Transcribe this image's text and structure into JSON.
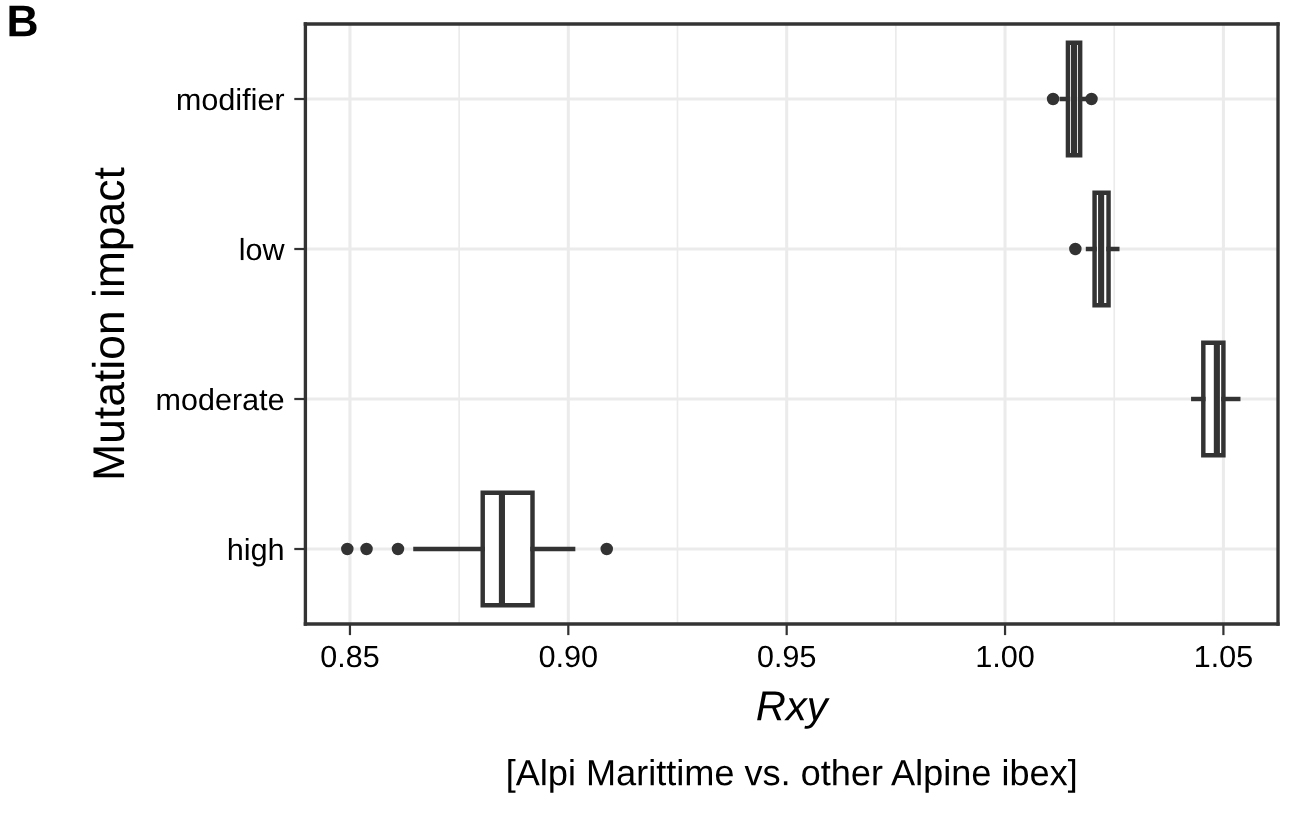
{
  "chart_data": {
    "type": "box",
    "orientation": "horizontal",
    "xlabel": "Rxy",
    "ylabel": "Mutation impact",
    "annotations": [
      "B",
      "[Alpi Marittime vs. other Alpine ibex]"
    ],
    "categories": [
      "modifier",
      "low",
      "moderate",
      "high"
    ],
    "color": "#333333",
    "boxes": [
      {
        "low": 1.013,
        "q1": 1.0144,
        "median": 1.0158,
        "q3": 1.0172,
        "high": 1.019,
        "outliers": [
          1.011,
          1.0198
        ]
      },
      {
        "low": 1.019,
        "q1": 1.0205,
        "median": 1.022,
        "q3": 1.0237,
        "high": 1.0257,
        "outliers": [
          1.0161
        ]
      },
      {
        "low": 1.0431,
        "q1": 1.0454,
        "median": 1.0485,
        "q3": 1.05,
        "high": 1.0534
      },
      {
        "low": 0.865,
        "q1": 0.8804,
        "median": 0.8848,
        "q3": 0.8918,
        "high": 0.9011,
        "outliers": [
          0.8494,
          0.8538,
          0.861,
          0.9088
        ]
      }
    ],
    "xlim": [
      0.8398,
      1.0625
    ],
    "xticks": [
      {
        "value": 0.85,
        "label": "0.85"
      },
      {
        "value": 0.9,
        "label": "0.90"
      },
      {
        "value": 0.95,
        "label": "0.95"
      },
      {
        "value": 1.0,
        "label": "1.00"
      },
      {
        "value": 1.05,
        "label": "1.05"
      }
    ],
    "grid": true
  }
}
